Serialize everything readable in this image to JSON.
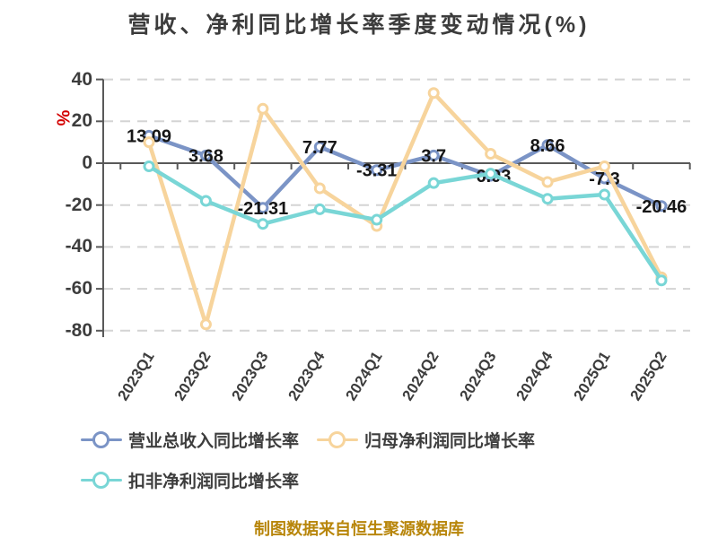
{
  "footer": {
    "text": "制图数据来自恒生聚源数据库"
  },
  "colors": {
    "revenue_series": "#7b94c6",
    "net_profit_series": "#f7d49c",
    "deducted_profit_series": "#79d6d6",
    "grid": "#d4d4d4",
    "axis": "#595959",
    "text": "#3d3d3d",
    "data_label": "#161616",
    "unit_label": "#d30000",
    "footer_text": "#b8860b",
    "background": "#ffffff"
  },
  "chart_data": {
    "type": "line",
    "title": "营收、净利同比增长率季度变动情况(%)",
    "xlabel": "",
    "ylabel": "%",
    "ylim": [
      -80,
      40
    ],
    "yticks": [
      40,
      20,
      0,
      -20,
      -40,
      -60,
      -80
    ],
    "grid": "horizontal dashed",
    "legend_position": "bottom",
    "categories": [
      "2023Q1",
      "2023Q2",
      "2023Q3",
      "2023Q4",
      "2024Q1",
      "2024Q2",
      "2024Q3",
      "2024Q4",
      "2025Q1",
      "2025Q2"
    ],
    "series": [
      {
        "name": "营业总收入同比增长率",
        "color": "#7b94c6",
        "values": [
          13.09,
          3.68,
          -21.31,
          7.77,
          -3.31,
          3.7,
          -6.03,
          8.66,
          -7.3,
          -20.46
        ],
        "labels": [
          "13.09",
          "3.68",
          "-21.31",
          "7.77",
          "-3.31",
          "3.7",
          "-6.03",
          "8.66",
          "-7.3",
          "-20.46"
        ]
      },
      {
        "name": "归母净利润同比增长率",
        "color": "#f7d49c",
        "values": [
          10,
          -77,
          26,
          -12,
          -30,
          33.5,
          4.5,
          -9,
          -1.5,
          -54.5
        ]
      },
      {
        "name": "扣非净利润同比增长率",
        "color": "#79d6d6",
        "values": [
          -1.5,
          -18,
          -29,
          -22,
          -27,
          -9.5,
          -5,
          -17,
          -15,
          -56
        ]
      }
    ]
  }
}
